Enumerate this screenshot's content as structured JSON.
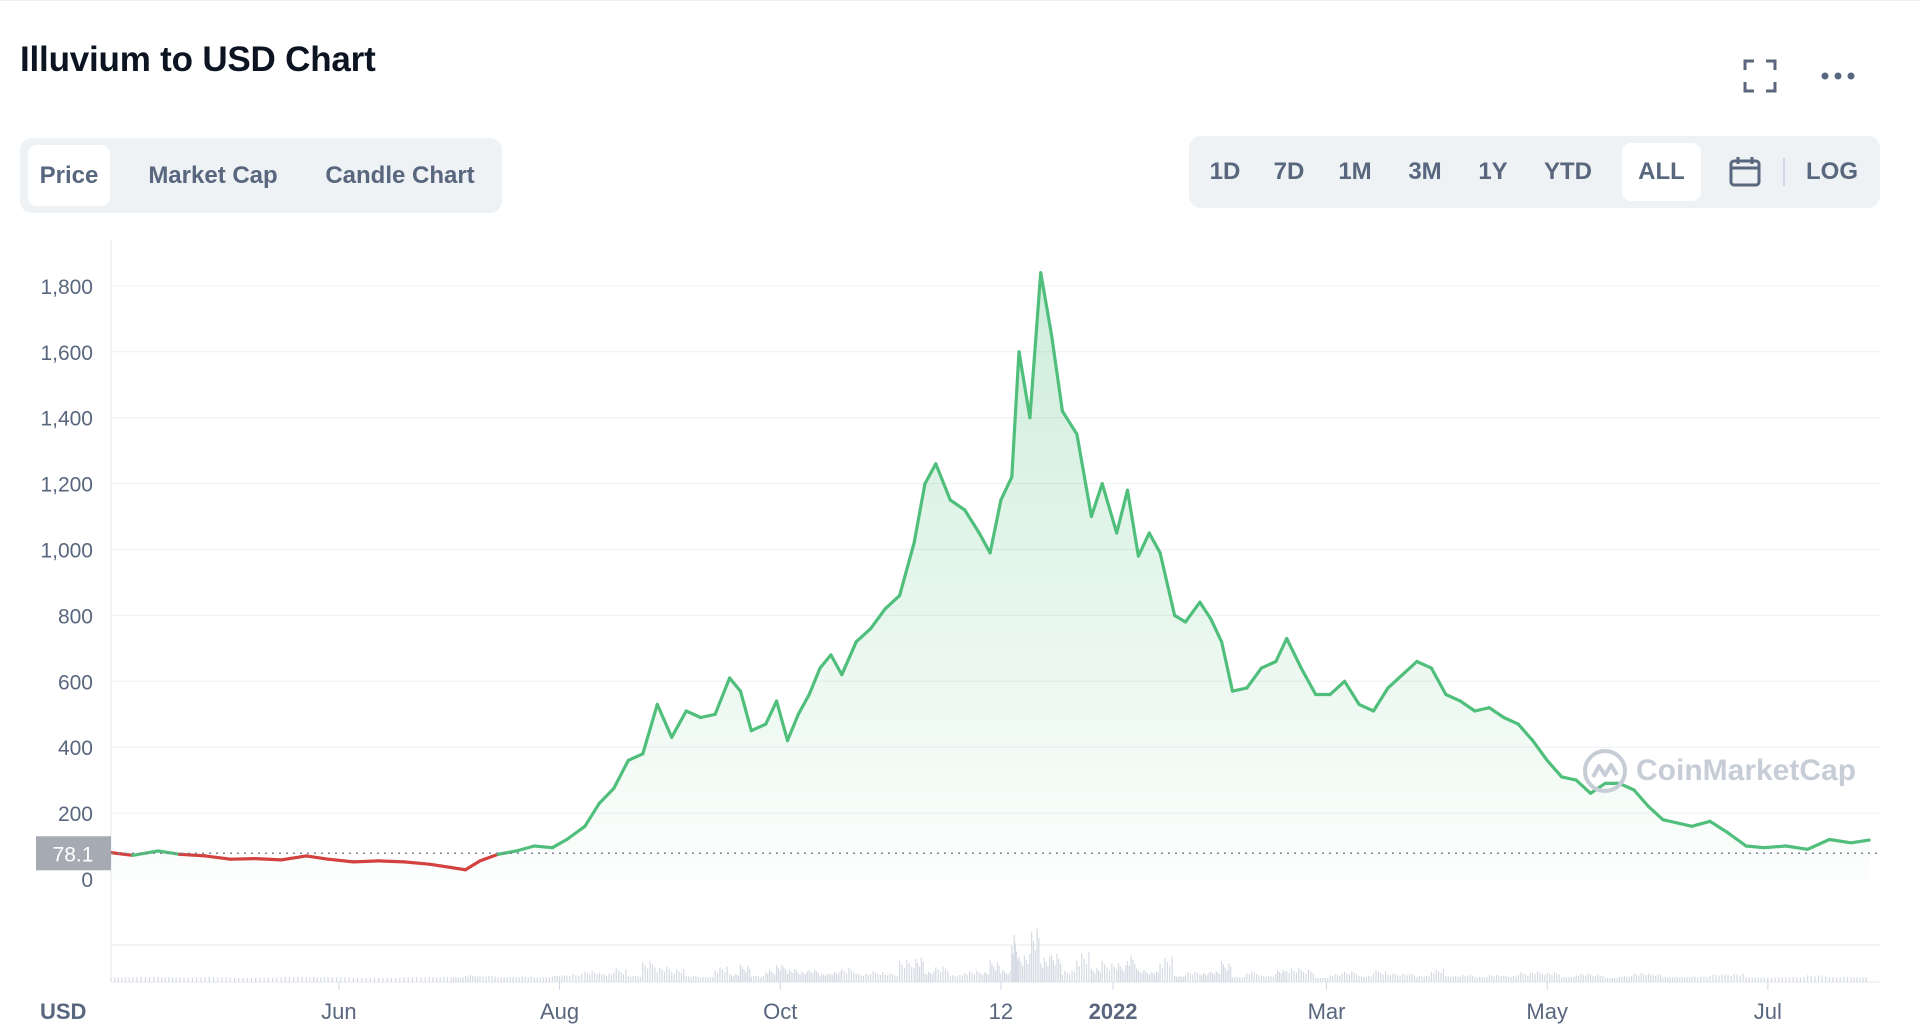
{
  "header": {
    "title": "Illuvium to USD Chart"
  },
  "icons": {
    "expand": "expand-icon",
    "more": "more-icon",
    "calendar": "calendar-icon"
  },
  "tabs": [
    {
      "label": "Price",
      "active": true
    },
    {
      "label": "Market Cap",
      "active": false
    },
    {
      "label": "Candle Chart",
      "active": false
    }
  ],
  "ranges": [
    {
      "label": "1D",
      "active": false
    },
    {
      "label": "7D",
      "active": false
    },
    {
      "label": "1M",
      "active": false
    },
    {
      "label": "3M",
      "active": false
    },
    {
      "label": "1Y",
      "active": false
    },
    {
      "label": "YTD",
      "active": false
    },
    {
      "label": "ALL",
      "active": true
    }
  ],
  "log_label": "LOG",
  "watermark": "CoinMarketCap",
  "chart_data": {
    "type": "area",
    "currency_label": "USD",
    "reference_price": "78.1",
    "ylim": [
      0,
      1850
    ],
    "y_ticks": [
      0,
      200,
      400,
      600,
      800,
      1000,
      1200,
      1400,
      1600,
      1800
    ],
    "y_tick_labels": [
      "0",
      "200",
      "400",
      "600",
      "800",
      "1,000",
      "1,200",
      "1,400",
      "1,600",
      "1,800"
    ],
    "x_ticks": [
      {
        "date": "2021-06-01",
        "label": "Jun",
        "bold": false
      },
      {
        "date": "2021-08-01",
        "label": "Aug",
        "bold": false
      },
      {
        "date": "2021-10-01",
        "label": "Oct",
        "bold": false
      },
      {
        "date": "2021-12-01",
        "label": "12",
        "bold": false
      },
      {
        "date": "2022-01-01",
        "label": "2022",
        "bold": true
      },
      {
        "date": "2022-03-01",
        "label": "Mar",
        "bold": false
      },
      {
        "date": "2022-05-01",
        "label": "May",
        "bold": false
      },
      {
        "date": "2022-07-01",
        "label": "Jul",
        "bold": false
      }
    ],
    "xlim": [
      "2021-03-30",
      "2022-08-01"
    ],
    "colors": {
      "up": "#4fbf7b",
      "down": "#d3423f",
      "grid": "#eef0f3",
      "axis_text": "#58667e"
    },
    "series": [
      {
        "values": [
          [
            "2021-03-30",
            80
          ],
          [
            "2021-04-05",
            72
          ],
          [
            "2021-04-12",
            85
          ],
          [
            "2021-04-18",
            75
          ],
          [
            "2021-04-25",
            70
          ],
          [
            "2021-05-02",
            60
          ],
          [
            "2021-05-09",
            62
          ],
          [
            "2021-05-16",
            58
          ],
          [
            "2021-05-23",
            70
          ],
          [
            "2021-05-29",
            60
          ],
          [
            "2021-06-05",
            52
          ],
          [
            "2021-06-12",
            55
          ],
          [
            "2021-06-19",
            52
          ],
          [
            "2021-06-26",
            45
          ],
          [
            "2021-07-02",
            35
          ],
          [
            "2021-07-06",
            28
          ],
          [
            "2021-07-10",
            55
          ],
          [
            "2021-07-15",
            75
          ],
          [
            "2021-07-20",
            85
          ],
          [
            "2021-07-25",
            100
          ],
          [
            "2021-07-30",
            95
          ],
          [
            "2021-08-03",
            120
          ],
          [
            "2021-08-08",
            160
          ],
          [
            "2021-08-12",
            230
          ],
          [
            "2021-08-16",
            275
          ],
          [
            "2021-08-20",
            360
          ],
          [
            "2021-08-24",
            380
          ],
          [
            "2021-08-28",
            530
          ],
          [
            "2021-09-01",
            430
          ],
          [
            "2021-09-05",
            510
          ],
          [
            "2021-09-09",
            490
          ],
          [
            "2021-09-13",
            500
          ],
          [
            "2021-09-17",
            610
          ],
          [
            "2021-09-20",
            570
          ],
          [
            "2021-09-23",
            450
          ],
          [
            "2021-09-27",
            470
          ],
          [
            "2021-09-30",
            540
          ],
          [
            "2021-10-03",
            420
          ],
          [
            "2021-10-06",
            500
          ],
          [
            "2021-10-09",
            560
          ],
          [
            "2021-10-12",
            640
          ],
          [
            "2021-10-15",
            680
          ],
          [
            "2021-10-18",
            620
          ],
          [
            "2021-10-22",
            720
          ],
          [
            "2021-10-26",
            760
          ],
          [
            "2021-10-30",
            820
          ],
          [
            "2021-11-03",
            860
          ],
          [
            "2021-11-07",
            1020
          ],
          [
            "2021-11-10",
            1200
          ],
          [
            "2021-11-13",
            1260
          ],
          [
            "2021-11-17",
            1150
          ],
          [
            "2021-11-21",
            1120
          ],
          [
            "2021-11-25",
            1050
          ],
          [
            "2021-11-28",
            990
          ],
          [
            "2021-12-01",
            1150
          ],
          [
            "2021-12-04",
            1220
          ],
          [
            "2021-12-06",
            1600
          ],
          [
            "2021-12-09",
            1400
          ],
          [
            "2021-12-12",
            1840
          ],
          [
            "2021-12-15",
            1650
          ],
          [
            "2021-12-18",
            1420
          ],
          [
            "2021-12-22",
            1350
          ],
          [
            "2021-12-26",
            1100
          ],
          [
            "2021-12-29",
            1200
          ],
          [
            "2022-01-02",
            1050
          ],
          [
            "2022-01-05",
            1180
          ],
          [
            "2022-01-08",
            980
          ],
          [
            "2022-01-11",
            1050
          ],
          [
            "2022-01-14",
            990
          ],
          [
            "2022-01-18",
            800
          ],
          [
            "2022-01-21",
            780
          ],
          [
            "2022-01-25",
            840
          ],
          [
            "2022-01-28",
            790
          ],
          [
            "2022-01-31",
            720
          ],
          [
            "2022-02-03",
            570
          ],
          [
            "2022-02-07",
            580
          ],
          [
            "2022-02-11",
            640
          ],
          [
            "2022-02-15",
            660
          ],
          [
            "2022-02-18",
            730
          ],
          [
            "2022-02-22",
            640
          ],
          [
            "2022-02-26",
            560
          ],
          [
            "2022-03-02",
            560
          ],
          [
            "2022-03-06",
            600
          ],
          [
            "2022-03-10",
            530
          ],
          [
            "2022-03-14",
            510
          ],
          [
            "2022-03-18",
            580
          ],
          [
            "2022-03-22",
            620
          ],
          [
            "2022-03-26",
            660
          ],
          [
            "2022-03-30",
            640
          ],
          [
            "2022-04-03",
            560
          ],
          [
            "2022-04-07",
            540
          ],
          [
            "2022-04-11",
            510
          ],
          [
            "2022-04-15",
            520
          ],
          [
            "2022-04-19",
            490
          ],
          [
            "2022-04-23",
            470
          ],
          [
            "2022-04-27",
            420
          ],
          [
            "2022-05-01",
            360
          ],
          [
            "2022-05-05",
            310
          ],
          [
            "2022-05-09",
            300
          ],
          [
            "2022-05-13",
            260
          ],
          [
            "2022-05-17",
            290
          ],
          [
            "2022-05-21",
            290
          ],
          [
            "2022-05-25",
            270
          ],
          [
            "2022-05-29",
            220
          ],
          [
            "2022-06-02",
            180
          ],
          [
            "2022-06-06",
            170
          ],
          [
            "2022-06-10",
            160
          ],
          [
            "2022-06-15",
            175
          ],
          [
            "2022-06-20",
            140
          ],
          [
            "2022-06-25",
            100
          ],
          [
            "2022-06-30",
            95
          ],
          [
            "2022-07-06",
            100
          ],
          [
            "2022-07-12",
            90
          ],
          [
            "2022-07-18",
            120
          ],
          [
            "2022-07-24",
            110
          ],
          [
            "2022-07-29",
            118
          ]
        ]
      }
    ]
  }
}
